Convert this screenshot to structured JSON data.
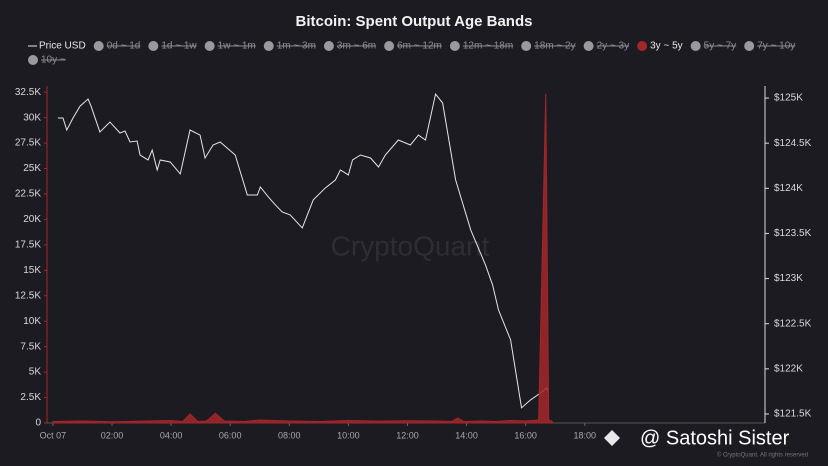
{
  "chart_data": {
    "type": "line",
    "title": "Bitcoin: Spent Output Age Bands",
    "xlim": [
      -0.2,
      24.1
    ],
    "xticks": [
      {
        "value": 0,
        "label": "Oct 07"
      },
      {
        "value": 2,
        "label": "02:00"
      },
      {
        "value": 4,
        "label": "04:00"
      },
      {
        "value": 6,
        "label": "06:00"
      },
      {
        "value": 8,
        "label": "08:00"
      },
      {
        "value": 10,
        "label": "10:00"
      },
      {
        "value": 12,
        "label": "12:00"
      },
      {
        "value": 14,
        "label": "14:00"
      },
      {
        "value": 16,
        "label": "16:00"
      },
      {
        "value": 18,
        "label": "18:00"
      }
    ],
    "ylim": [
      0,
      32518
    ],
    "yticks": [
      0,
      {
        "value": 2500,
        "label": "2.5K"
      },
      {
        "value": 5000,
        "label": "5K"
      },
      {
        "value": 7500,
        "label": "7.5K"
      },
      {
        "value": 10000,
        "label": "10K"
      },
      {
        "value": 12500,
        "label": "12.5K"
      },
      {
        "value": 15000,
        "label": "15K"
      },
      {
        "value": 17500,
        "label": "17.5K"
      },
      {
        "value": 20000,
        "label": "20K"
      },
      {
        "value": 22500,
        "label": "22.5K"
      },
      {
        "value": 25000,
        "label": "25K"
      },
      {
        "value": 27500,
        "label": "27.5K"
      },
      {
        "value": 30000,
        "label": "30K"
      },
      {
        "value": 32500,
        "label": "32.5K"
      }
    ],
    "y2lim": [
      121400,
      125067
    ],
    "y2ticks": [
      {
        "value": 121500,
        "label": "$121.5K"
      },
      {
        "value": 122000,
        "label": "$122K"
      },
      {
        "value": 122500,
        "label": "$122.5K"
      },
      {
        "value": 123000,
        "label": "$123K"
      },
      {
        "value": 123500,
        "label": "$123.5K"
      },
      {
        "value": 124000,
        "label": "$124K"
      },
      {
        "value": 124500,
        "label": "$124.5K"
      },
      {
        "value": 125000,
        "label": "$125K"
      }
    ],
    "series": [
      {
        "name": "Price USD",
        "color": "#e6e6e6",
        "axis": "y2",
        "visible": true,
        "style": "line",
        "x": [
          0.17,
          0.34,
          0.47,
          0.68,
          0.92,
          1.19,
          1.29,
          1.59,
          1.93,
          2.27,
          2.44,
          2.61,
          2.85,
          2.95,
          3.22,
          3.36,
          3.53,
          3.63,
          3.97,
          4.31,
          4.64,
          4.98,
          5.15,
          5.42,
          5.66,
          6.17,
          6.58,
          6.92,
          7.02,
          7.29,
          7.53,
          7.76,
          8.03,
          8.44,
          8.81,
          9.22,
          9.56,
          9.73,
          10.0,
          10.14,
          10.41,
          10.75,
          11.02,
          11.25,
          11.69,
          12.1,
          12.37,
          12.61,
          12.95,
          13.19,
          13.63,
          14.14,
          14.64,
          14.88,
          15.08,
          15.49,
          15.86,
          16.17,
          16.51,
          16.71,
          16.78
        ],
        "values": [
          124779,
          124779,
          124646,
          124779,
          124911,
          124989,
          124911,
          124624,
          124734,
          124613,
          124635,
          124513,
          124524,
          124369,
          124314,
          124424,
          124203,
          124314,
          124292,
          124159,
          124646,
          124590,
          124336,
          124480,
          124513,
          124369,
          123926,
          123926,
          124015,
          123904,
          123816,
          123738,
          123705,
          123561,
          123871,
          124004,
          124092,
          124203,
          124148,
          124314,
          124369,
          124336,
          124236,
          124369,
          124535,
          124480,
          124590,
          124535,
          125044,
          124945,
          124092,
          123539,
          123151,
          122930,
          122653,
          122321,
          121568,
          121657,
          121734,
          121790,
          121734
        ]
      },
      {
        "name": "0d ~ 1d",
        "color": "#9a9a9e",
        "visible": false
      },
      {
        "name": "1d ~ 1w",
        "color": "#9a9a9e",
        "visible": false
      },
      {
        "name": "1w ~ 1m",
        "color": "#9a9a9e",
        "visible": false
      },
      {
        "name": "1m ~ 3m",
        "color": "#9a9a9e",
        "visible": false
      },
      {
        "name": "3m ~ 6m",
        "color": "#9a9a9e",
        "visible": false
      },
      {
        "name": "6m ~ 12m",
        "color": "#9a9a9e",
        "visible": false
      },
      {
        "name": "12m ~ 18m",
        "color": "#9a9a9e",
        "visible": false
      },
      {
        "name": "18m ~ 2y",
        "color": "#9a9a9e",
        "visible": false
      },
      {
        "name": "2y ~ 3y",
        "color": "#9a9a9e",
        "visible": false
      },
      {
        "name": "3y ~ 5y",
        "color": "#a3262a",
        "axis": "y",
        "visible": true,
        "style": "area",
        "x": [
          0,
          1,
          2,
          3,
          4,
          4.4,
          4.64,
          4.9,
          5.2,
          5.5,
          5.8,
          6.5,
          7,
          8,
          9,
          10,
          11,
          12,
          13,
          13.5,
          13.7,
          13.9,
          14.5,
          15,
          15.5,
          16,
          16.44,
          16.68,
          16.78,
          16.9
        ],
        "values": [
          150,
          200,
          120,
          180,
          250,
          150,
          900,
          150,
          200,
          950,
          200,
          150,
          300,
          200,
          150,
          250,
          180,
          220,
          200,
          150,
          500,
          150,
          200,
          150,
          250,
          200,
          300,
          32318,
          300,
          150
        ]
      },
      {
        "name": "5y ~ 7y",
        "color": "#9a9a9e",
        "visible": false
      },
      {
        "name": "7y ~ 10y",
        "color": "#9a9a9e",
        "visible": false
      },
      {
        "name": "10y ~",
        "color": "#9a9a9e",
        "visible": false
      }
    ],
    "watermark": "CryptoQuant",
    "overlay": "@ Satoshi Sister",
    "copyright": "© CryptoQuant. All rights reserved"
  }
}
